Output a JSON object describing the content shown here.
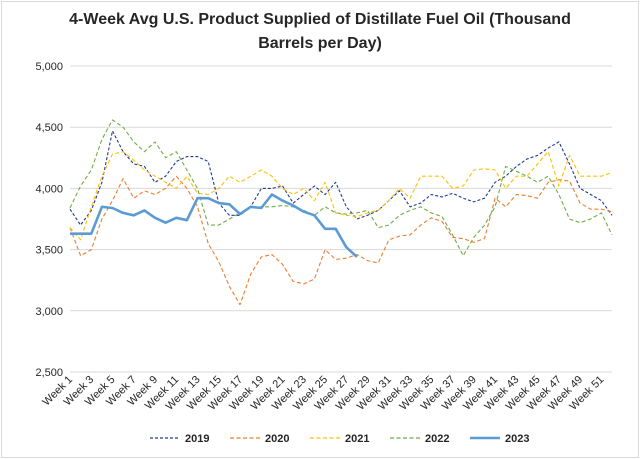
{
  "chart_data": {
    "type": "line",
    "title": "4-Week Avg U.S. Product Supplied of Distillate Fuel Oil  (Thousand Barrels per Day)",
    "xlabel": "",
    "ylabel": "",
    "ylim": [
      2500,
      5000
    ],
    "yticks": [
      "2,500",
      "3,000",
      "3,500",
      "4,000",
      "4,500",
      "5,000"
    ],
    "x_tick_labels": [
      "Week 1",
      "Week 3",
      "Week 5",
      "Week 7",
      "Week 9",
      "Week 11",
      "Week 13",
      "Week 15",
      "Week 17",
      "Week 19",
      "Week 21",
      "Week 23",
      "Week 25",
      "Week 27",
      "Week 29",
      "Week 31",
      "Week 33",
      "Week 35",
      "Week 37",
      "Week 39",
      "Week 41",
      "Week 43",
      "Week 45",
      "Week 47",
      "Week 49",
      "Week 51"
    ],
    "grid": "horizontal",
    "legend_position": "bottom",
    "series": [
      {
        "name": "2019",
        "color": "#1f3a93",
        "dash": "dotted",
        "values": [
          3830,
          3700,
          3820,
          4050,
          4470,
          4300,
          4200,
          4180,
          4050,
          4100,
          4220,
          4260,
          4260,
          4220,
          3880,
          3780,
          3780,
          3850,
          4000,
          4000,
          4020,
          3880,
          3950,
          4020,
          3950,
          4050,
          3850,
          3750,
          3780,
          3820,
          3900,
          3980,
          3850,
          3880,
          3950,
          3930,
          3960,
          3920,
          3890,
          3920,
          4050,
          4100,
          4180,
          4240,
          4270,
          4330,
          4380,
          4200,
          4000,
          3950,
          3900,
          3780
        ]
      },
      {
        "name": "2020",
        "color": "#ed7d31",
        "dash": "dashed",
        "values": [
          3680,
          3450,
          3500,
          3750,
          3900,
          4080,
          3920,
          3980,
          3950,
          4000,
          4100,
          4000,
          3850,
          3550,
          3400,
          3200,
          3050,
          3300,
          3440,
          3460,
          3380,
          3240,
          3220,
          3260,
          3500,
          3420,
          3430,
          3460,
          3410,
          3390,
          3580,
          3610,
          3620,
          3700,
          3760,
          3730,
          3600,
          3590,
          3560,
          3590,
          3920,
          3850,
          3950,
          3940,
          3920,
          4050,
          4070,
          4060,
          3880,
          3830,
          3830,
          3810
        ]
      },
      {
        "name": "2021",
        "color": "#ffc000",
        "dash": "dashed",
        "values": [
          3680,
          3580,
          3850,
          4100,
          4280,
          4300,
          4230,
          4150,
          4100,
          4050,
          4000,
          4100,
          3960,
          3950,
          4000,
          4100,
          4050,
          4100,
          4150,
          4100,
          4000,
          3950,
          4000,
          3900,
          4050,
          3800,
          3780,
          3770,
          3800,
          3820,
          3900,
          4000,
          3920,
          4100,
          4100,
          4100,
          4000,
          4020,
          4150,
          4160,
          4150,
          4000,
          4100,
          4100,
          4200,
          4300,
          4020,
          4270,
          4100,
          4100,
          4100,
          4130
        ]
      },
      {
        "name": "2022",
        "color": "#70ad47",
        "dash": "dashed",
        "values": [
          3840,
          4020,
          4150,
          4400,
          4560,
          4500,
          4380,
          4300,
          4380,
          4250,
          4300,
          4150,
          4000,
          3700,
          3700,
          3750,
          3800,
          3840,
          3850,
          3850,
          3860,
          3850,
          3820,
          3780,
          3850,
          3800,
          3790,
          3800,
          3820,
          3680,
          3700,
          3780,
          3820,
          3850,
          3800,
          3770,
          3620,
          3450,
          3600,
          3700,
          3850,
          4180,
          4140,
          4100,
          4050,
          4100,
          3950,
          3750,
          3720,
          3750,
          3800,
          3620
        ]
      },
      {
        "name": "2023",
        "color": "#5b9bd5",
        "dash": "solid",
        "values": [
          3630,
          3630,
          3630,
          3850,
          3840,
          3800,
          3780,
          3820,
          3760,
          3720,
          3760,
          3740,
          3920,
          3920,
          3880,
          3870,
          3790,
          3850,
          3840,
          3950,
          3900,
          3860,
          3810,
          3780,
          3670,
          3670,
          3520,
          3440
        ]
      }
    ]
  }
}
